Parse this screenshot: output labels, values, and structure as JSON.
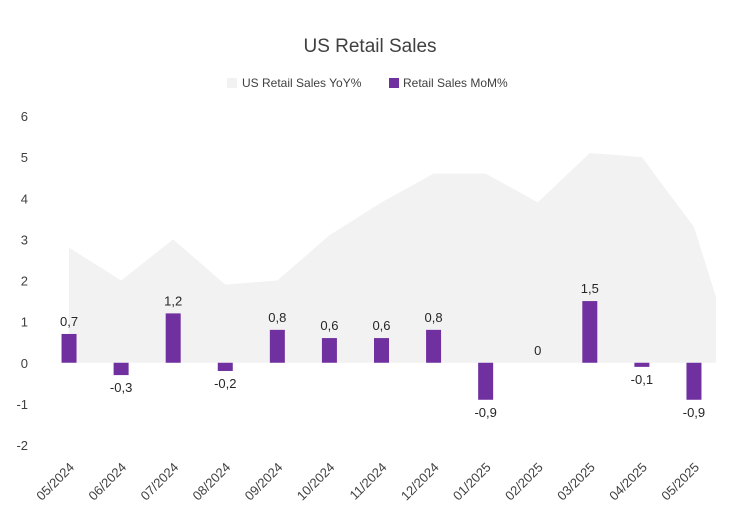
{
  "chart_data": {
    "type": "bar",
    "title": "US Retail Sales",
    "categories": [
      "05/2024",
      "06/2024",
      "07/2024",
      "08/2024",
      "09/2024",
      "10/2024",
      "11/2024",
      "12/2024",
      "01/2025",
      "02/2025",
      "03/2025",
      "04/2025",
      "05/2025"
    ],
    "series": [
      {
        "name": "US Retail Sales YoY%",
        "type": "area",
        "color": "#f2f2f2",
        "values": [
          2.8,
          2.0,
          3.0,
          1.9,
          2.0,
          3.1,
          3.9,
          4.6,
          4.6,
          3.9,
          5.1,
          5.0,
          3.3
        ]
      },
      {
        "name": "Retail Sales MoM%",
        "type": "bar",
        "color": "#7030a0",
        "values": [
          0.7,
          -0.3,
          1.2,
          -0.2,
          0.8,
          0.6,
          0.6,
          0.8,
          -0.9,
          0,
          1.5,
          -0.1,
          -0.9
        ],
        "data_labels": [
          "0,7",
          "-0,3",
          "1,2",
          "-0,2",
          "0,8",
          "0,6",
          "0,6",
          "0,8",
          "-0,9",
          "0",
          "1,5",
          "-0,1",
          "-0,9"
        ]
      }
    ],
    "y_ticks": [
      "6",
      "5",
      "4",
      "3",
      "2",
      "1",
      "0",
      "-1",
      "-2"
    ],
    "ylim": [
      -2,
      6
    ],
    "grid": false,
    "legend_position": "top"
  }
}
